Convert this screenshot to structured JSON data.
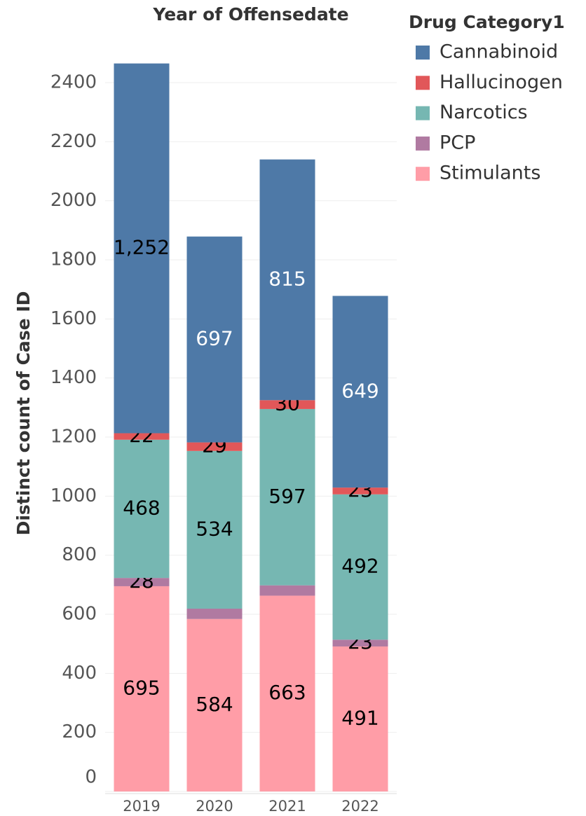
{
  "chart_data": {
    "type": "stacked_bar",
    "title": "Year of Offensedate",
    "y_label": "Distinct count of Case ID",
    "legend_title": "Drug Category1",
    "legend": "right",
    "categories": [
      "2019",
      "2020",
      "2021",
      "2022"
    ],
    "series": [
      {
        "name": "Stimulants",
        "color": "#ff9da7",
        "values": [
          695,
          584,
          663,
          491
        ]
      },
      {
        "name": "PCP",
        "color": "#b07aa1",
        "values": [
          28,
          35,
          35,
          23
        ],
        "value_labels": [
          "28",
          null,
          null,
          "23"
        ]
      },
      {
        "name": "Narcotics",
        "color": "#76b7b2",
        "values": [
          468,
          534,
          597,
          492
        ]
      },
      {
        "name": "Hallucinogen",
        "color": "#e15759",
        "values": [
          22,
          29,
          30,
          23
        ]
      },
      {
        "name": "Cannabinoid",
        "color": "#4e79a7",
        "values": [
          1252,
          697,
          815,
          649
        ],
        "value_labels": [
          "1,252",
          "697",
          "815",
          "649"
        ]
      }
    ],
    "legend_order": [
      4,
      3,
      2,
      1,
      0
    ],
    "ylim": [
      0,
      2585
    ],
    "yticks": [
      0,
      200,
      400,
      600,
      800,
      1000,
      1200,
      1400,
      1600,
      1800,
      2000,
      2200,
      2400
    ],
    "grid": true
  }
}
